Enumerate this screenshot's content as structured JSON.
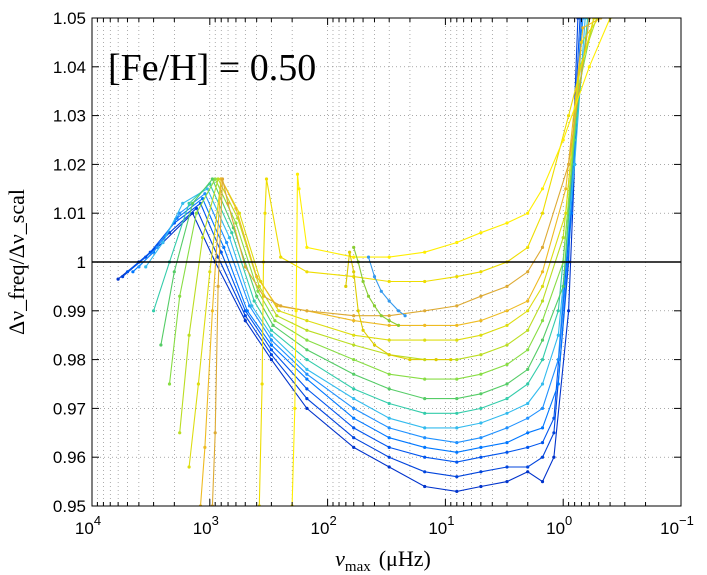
{
  "chart_data": {
    "type": "line",
    "title": "",
    "annotation": "[Fe/H] = 0.50",
    "xlabel": "ν_max (μHz)",
    "xlabel_main": "ν",
    "xlabel_sub": "max",
    "xlabel_unit": "(μHz)",
    "ylabel": "Δν_freq/Δν_scal",
    "x_scale": "log",
    "x_reversed": true,
    "xlim": [
      10000,
      0.1
    ],
    "ylim": [
      0.95,
      1.05
    ],
    "grid": true,
    "reference_line": 1.0,
    "x_ticks": [
      {
        "value": 10000,
        "base": "10",
        "exp": "4"
      },
      {
        "value": 1000,
        "base": "10",
        "exp": "3"
      },
      {
        "value": 100,
        "base": "10",
        "exp": "2"
      },
      {
        "value": 10,
        "base": "10",
        "exp": "1"
      },
      {
        "value": 1,
        "base": "10",
        "exp": "0"
      },
      {
        "value": 0.1,
        "base": "10",
        "exp": "−1"
      }
    ],
    "y_ticks": [
      {
        "value": 0.95,
        "label": "0.95"
      },
      {
        "value": 0.96,
        "label": "0.96"
      },
      {
        "value": 0.97,
        "label": "0.97"
      },
      {
        "value": 0.98,
        "label": "0.98"
      },
      {
        "value": 0.99,
        "label": "0.99"
      },
      {
        "value": 1.0,
        "label": "1"
      },
      {
        "value": 1.01,
        "label": "1.01"
      },
      {
        "value": 1.02,
        "label": "1.02"
      },
      {
        "value": 1.03,
        "label": "1.03"
      },
      {
        "value": 1.04,
        "label": "1.04"
      },
      {
        "value": 1.05,
        "label": "1.05"
      }
    ],
    "series": [
      {
        "name": "track-1",
        "color": "#0033cc",
        "x": [
          6000,
          4000,
          2500,
          1400,
          900,
          500,
          300,
          150,
          60,
          30,
          15,
          8,
          5,
          3,
          2,
          1.5,
          1.2,
          0.9,
          0.8,
          0.7
        ],
        "y": [
          0.9965,
          1.0,
          1.004,
          1.01,
          1.0,
          0.988,
          0.98,
          0.97,
          0.962,
          0.958,
          0.954,
          0.953,
          0.954,
          0.955,
          0.957,
          0.955,
          0.96,
          0.99,
          1.02,
          1.05
        ]
      },
      {
        "name": "track-2",
        "color": "#0044dd",
        "x": [
          5500,
          3500,
          2200,
          1300,
          850,
          500,
          300,
          150,
          60,
          30,
          15,
          8,
          5,
          3,
          2,
          1.5,
          1.2,
          0.9,
          0.75
        ],
        "y": [
          0.997,
          1.001,
          1.006,
          1.011,
          1.001,
          0.989,
          0.981,
          0.972,
          0.964,
          0.96,
          0.957,
          0.956,
          0.957,
          0.958,
          0.958,
          0.96,
          0.965,
          1.0,
          1.05
        ]
      },
      {
        "name": "track-3",
        "color": "#0055ee",
        "x": [
          5000,
          3200,
          2000,
          1200,
          800,
          500,
          300,
          150,
          60,
          30,
          15,
          8,
          5,
          3,
          2,
          1.5,
          1.2,
          0.9,
          0.72
        ],
        "y": [
          0.998,
          1.002,
          1.008,
          1.012,
          1.002,
          0.99,
          0.982,
          0.974,
          0.966,
          0.962,
          0.96,
          0.959,
          0.96,
          0.961,
          0.962,
          0.963,
          0.968,
          1.005,
          1.05
        ]
      },
      {
        "name": "track-4",
        "color": "#0077ff",
        "x": [
          4500,
          3000,
          1900,
          1150,
          760,
          480,
          300,
          150,
          60,
          30,
          15,
          8,
          5,
          3,
          2,
          1.5,
          1.1,
          0.85,
          0.7
        ],
        "y": [
          0.998,
          1.002,
          1.009,
          1.013,
          1.003,
          0.99,
          0.983,
          0.976,
          0.968,
          0.964,
          0.962,
          0.961,
          0.962,
          0.963,
          0.965,
          0.966,
          0.975,
          1.01,
          1.05
        ]
      },
      {
        "name": "track-5",
        "color": "#1e90ff",
        "x": [
          4000,
          2800,
          1800,
          1100,
          720,
          460,
          300,
          150,
          60,
          30,
          15,
          8,
          5,
          3,
          2,
          1.5,
          1.1,
          0.85,
          0.68
        ],
        "y": [
          0.999,
          1.003,
          1.01,
          1.014,
          1.004,
          0.991,
          0.984,
          0.977,
          0.97,
          0.966,
          0.964,
          0.963,
          0.964,
          0.966,
          0.968,
          0.97,
          0.98,
          1.015,
          1.05
        ]
      },
      {
        "name": "track-6",
        "color": "#33bbee",
        "x": [
          3500,
          2500,
          1700,
          1050,
          680,
          440,
          300,
          150,
          60,
          30,
          15,
          8,
          5,
          3,
          2,
          1.5,
          1.1,
          0.8,
          0.65
        ],
        "y": [
          0.999,
          1.004,
          1.012,
          1.015,
          1.005,
          0.991,
          0.985,
          0.978,
          0.972,
          0.968,
          0.966,
          0.966,
          0.967,
          0.969,
          0.971,
          0.975,
          0.985,
          1.02,
          1.05
        ]
      },
      {
        "name": "track-7",
        "color": "#33ccaa",
        "x": [
          3000,
          2200,
          1500,
          1000,
          650,
          420,
          300,
          150,
          60,
          30,
          15,
          8,
          5,
          3,
          2,
          1.5,
          1.1,
          0.8,
          0.62
        ],
        "y": [
          0.99,
          1.0,
          1.012,
          1.016,
          1.006,
          0.992,
          0.986,
          0.98,
          0.974,
          0.971,
          0.969,
          0.969,
          0.97,
          0.972,
          0.975,
          0.98,
          0.99,
          1.025,
          1.05
        ]
      },
      {
        "name": "track-8",
        "color": "#55cc66",
        "x": [
          2600,
          2000,
          1400,
          950,
          630,
          400,
          290,
          150,
          60,
          30,
          15,
          8,
          5,
          3,
          2,
          1.5,
          1.0,
          0.78,
          0.6
        ],
        "y": [
          0.983,
          0.998,
          1.012,
          1.017,
          1.007,
          0.993,
          0.987,
          0.982,
          0.977,
          0.974,
          0.972,
          0.972,
          0.973,
          0.975,
          0.978,
          0.984,
          0.995,
          1.03,
          1.05
        ]
      },
      {
        "name": "track-9",
        "color": "#88dd44",
        "x": [
          2200,
          1800,
          1300,
          900,
          600,
          390,
          280,
          150,
          60,
          30,
          15,
          8,
          5,
          3,
          2,
          1.5,
          1.0,
          0.75,
          0.55
        ],
        "y": [
          0.975,
          0.993,
          1.01,
          1.017,
          1.008,
          0.994,
          0.988,
          0.984,
          0.98,
          0.977,
          0.976,
          0.976,
          0.977,
          0.979,
          0.982,
          0.988,
          1.0,
          1.035,
          1.05
        ]
      },
      {
        "name": "track-10",
        "color": "#bbdd22",
        "x": [
          1800,
          1500,
          1150,
          850,
          580,
          380,
          270,
          150,
          60,
          30,
          15,
          8,
          5,
          3,
          2,
          1.5,
          1.0,
          0.72,
          0.52
        ],
        "y": [
          0.965,
          0.985,
          1.005,
          1.017,
          1.009,
          0.995,
          0.989,
          0.986,
          0.983,
          0.981,
          0.98,
          0.98,
          0.981,
          0.983,
          0.986,
          0.992,
          1.005,
          1.04,
          1.05
        ]
      },
      {
        "name": "track-11",
        "color": "#dddd11",
        "x": [
          1500,
          1250,
          1000,
          800,
          560,
          370,
          260,
          150,
          60,
          30,
          15,
          8,
          5,
          3,
          2,
          1.5,
          0.95,
          0.7,
          0.5
        ],
        "y": [
          0.958,
          0.975,
          0.998,
          1.017,
          1.01,
          0.996,
          0.99,
          0.988,
          0.985,
          0.984,
          0.984,
          0.984,
          0.985,
          0.987,
          0.99,
          0.995,
          1.01,
          1.045,
          1.05
        ]
      },
      {
        "name": "track-12",
        "color": "#eebb22",
        "x": [
          1200,
          1100,
          950,
          800,
          600,
          400,
          270,
          150,
          60,
          30,
          15,
          8,
          5,
          3,
          2,
          1.5,
          0.95,
          0.68,
          0.48
        ],
        "y": [
          0.95,
          0.962,
          0.99,
          1.017,
          1.011,
          0.997,
          0.991,
          0.99,
          0.988,
          0.987,
          0.987,
          0.987,
          0.988,
          0.99,
          0.992,
          0.998,
          1.015,
          1.048,
          1.05
        ]
      },
      {
        "name": "track-13",
        "color": "#ddaa33",
        "x": [
          950,
          900,
          850,
          780,
          700,
          500,
          350,
          250,
          150,
          60,
          30,
          15,
          8,
          5,
          3,
          2,
          1.5,
          0.9,
          0.6
        ],
        "y": [
          0.95,
          0.965,
          0.995,
          1.017,
          1.012,
          0.999,
          0.993,
          0.991,
          0.99,
          0.989,
          0.989,
          0.99,
          0.991,
          0.993,
          0.995,
          0.998,
          1.003,
          1.02,
          1.05
        ]
      },
      {
        "name": "track-14",
        "color": "#eedd00",
        "x": [
          380,
          360,
          350,
          340,
          330,
          250,
          150,
          60,
          30,
          15,
          8,
          5,
          3,
          2,
          1.5,
          0.9,
          0.55
        ],
        "y": [
          0.95,
          0.975,
          1.0,
          1.01,
          1.017,
          1.001,
          0.998,
          0.997,
          0.996,
          0.996,
          0.997,
          0.998,
          1.0,
          1.003,
          1.01,
          1.03,
          1.05
        ]
      },
      {
        "name": "track-15",
        "color": "#ffee00",
        "x": [
          200,
          190,
          185,
          180,
          175,
          150,
          60,
          30,
          15,
          8,
          5,
          3,
          2,
          1.5,
          1.0,
          0.6,
          0.4
        ],
        "y": [
          0.95,
          0.97,
          0.99,
          1.018,
          1.015,
          1.003,
          1.001,
          1.001,
          1.002,
          1.004,
          1.006,
          1.008,
          1.01,
          1.015,
          1.025,
          1.04,
          1.05
        ]
      },
      {
        "name": "loop-a",
        "color": "#ddcc00",
        "x": [
          70,
          65,
          60,
          55,
          50,
          40,
          30,
          20,
          12,
          9
        ],
        "y": [
          0.995,
          1.002,
          0.998,
          0.99,
          0.986,
          0.983,
          0.981,
          0.98,
          0.98,
          0.98
        ]
      },
      {
        "name": "loop-b",
        "color": "#88cc33",
        "x": [
          60,
          55,
          50,
          45,
          40,
          35,
          30,
          25
        ],
        "y": [
          1.003,
          1.0,
          0.996,
          0.993,
          0.991,
          0.989,
          0.988,
          0.987
        ]
      },
      {
        "name": "loop-c",
        "color": "#3399ee",
        "x": [
          45,
          40,
          35,
          30,
          25,
          22
        ],
        "y": [
          1.001,
          0.997,
          0.994,
          0.992,
          0.99,
          0.989
        ]
      }
    ]
  }
}
